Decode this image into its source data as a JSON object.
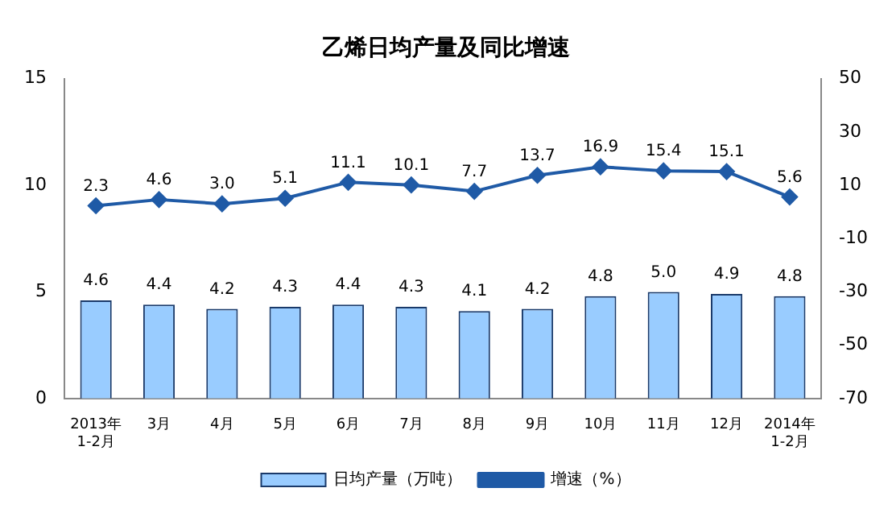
{
  "chart_data": {
    "type": "bar",
    "title": "乙烯日均产量及同比增速",
    "categories": [
      "2013年\n1-2月",
      "3月",
      "4月",
      "5月",
      "6月",
      "7月",
      "8月",
      "9月",
      "10月",
      "11月",
      "12月",
      "2014年\n1-2月"
    ],
    "series": [
      {
        "name": "日均产量（万吨）",
        "color": "#99ccff",
        "values": [
          4.6,
          4.4,
          4.2,
          4.3,
          4.4,
          4.3,
          4.1,
          4.2,
          4.8,
          5.0,
          4.9,
          4.8
        ],
        "value_labels": [
          "4.6",
          "4.4",
          "4.2",
          "4.3",
          "4.4",
          "4.3",
          "4.1",
          "4.2",
          "4.8",
          "5.0",
          "4.9",
          "4.8"
        ]
      },
      {
        "name": "增速（%）",
        "type": "line",
        "axis": "y2",
        "color": "#1f5aa6",
        "marker": "diamond",
        "values": [
          2.3,
          4.6,
          3.0,
          5.1,
          11.1,
          10.1,
          7.7,
          13.7,
          16.9,
          15.4,
          15.1,
          5.6
        ],
        "value_labels": [
          "2.3",
          "4.6",
          "3.0",
          "5.1",
          "11.1",
          "10.1",
          "7.7",
          "13.7",
          "16.9",
          "15.4",
          "15.1",
          "5.6"
        ]
      }
    ],
    "ylim": [
      0,
      15
    ],
    "yticks": [
      0,
      5,
      10,
      15
    ],
    "y2lim": [
      -70,
      50
    ],
    "y2ticks": [
      -70,
      -50,
      -30,
      -10,
      10,
      30,
      50
    ],
    "legend": "bottom",
    "grid": false
  }
}
